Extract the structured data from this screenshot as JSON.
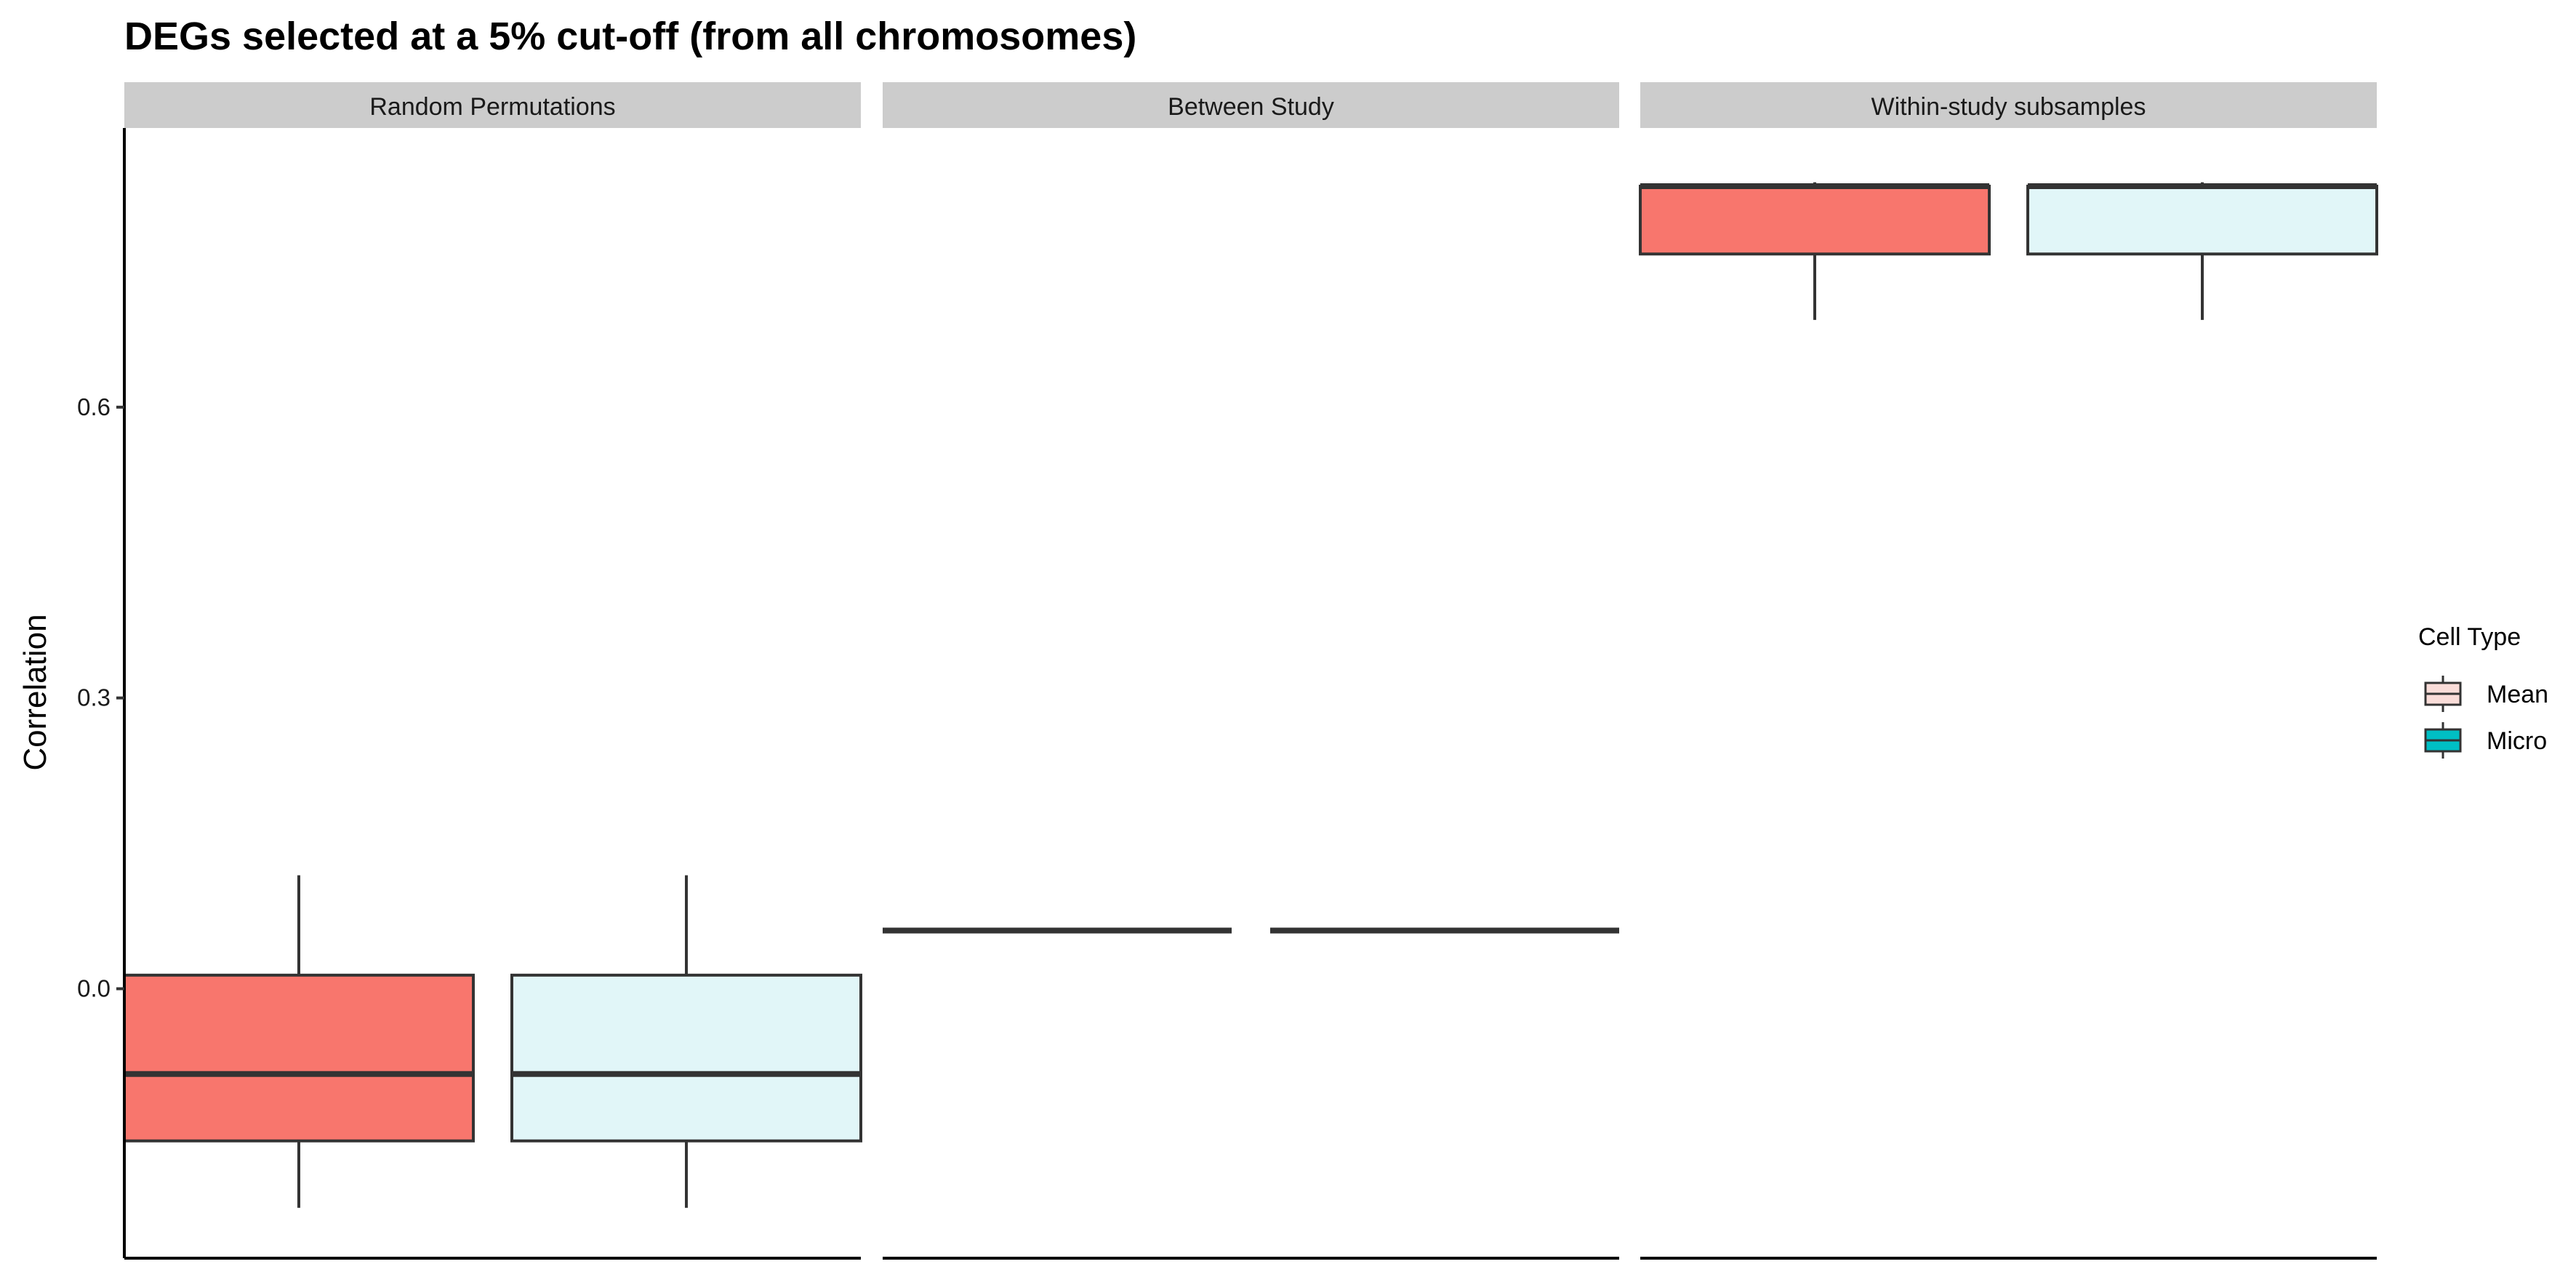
{
  "chart_data": {
    "type": "box",
    "title": "DEGs selected at a 5% cut-off (from all chromosomes)",
    "ylabel": "Correlation",
    "xlabel": "",
    "ylim": [
      -0.278,
      0.888
    ],
    "yticks": [
      0.0,
      0.3,
      0.6
    ],
    "ytick_labels": [
      "0.0",
      "0.3",
      "0.6"
    ],
    "panels": [
      "Random Permutations",
      "Between Study",
      "Within-study subsamples"
    ],
    "legend": {
      "title": "Cell Type",
      "position": "right",
      "entries": [
        {
          "name": "Mean",
          "fill": "#F8766D",
          "icon_fill": "#FADDD9"
        },
        {
          "name": "Micro",
          "fill": "#00BFC4",
          "icon_fill": "#00BFC4"
        }
      ]
    },
    "series": [
      {
        "name": "Mean",
        "fill": "#F8766D",
        "boxes": [
          {
            "panel": "Random Permutations",
            "whisker_low": -0.226,
            "q1": -0.157,
            "median": -0.088,
            "q3": 0.014,
            "whisker_high": 0.117
          },
          {
            "panel": "Between Study",
            "whisker_low": 0.06,
            "q1": 0.06,
            "median": 0.06,
            "q3": 0.06,
            "whisker_high": 0.06
          },
          {
            "panel": "Within-study subsamples",
            "whisker_low": 0.69,
            "q1": 0.758,
            "median": 0.828,
            "q3": 0.828,
            "whisker_high": 0.832
          }
        ]
      },
      {
        "name": "Micro",
        "fill": "#E1F6F8",
        "boxes": [
          {
            "panel": "Random Permutations",
            "whisker_low": -0.226,
            "q1": -0.157,
            "median": -0.088,
            "q3": 0.014,
            "whisker_high": 0.117
          },
          {
            "panel": "Between Study",
            "whisker_low": 0.06,
            "q1": 0.06,
            "median": 0.06,
            "q3": 0.06,
            "whisker_high": 0.06
          },
          {
            "panel": "Within-study subsamples",
            "whisker_low": 0.69,
            "q1": 0.758,
            "median": 0.828,
            "q3": 0.828,
            "whisker_high": 0.832
          }
        ]
      }
    ],
    "grid": false,
    "strip_fill": "#CCCCCC"
  }
}
